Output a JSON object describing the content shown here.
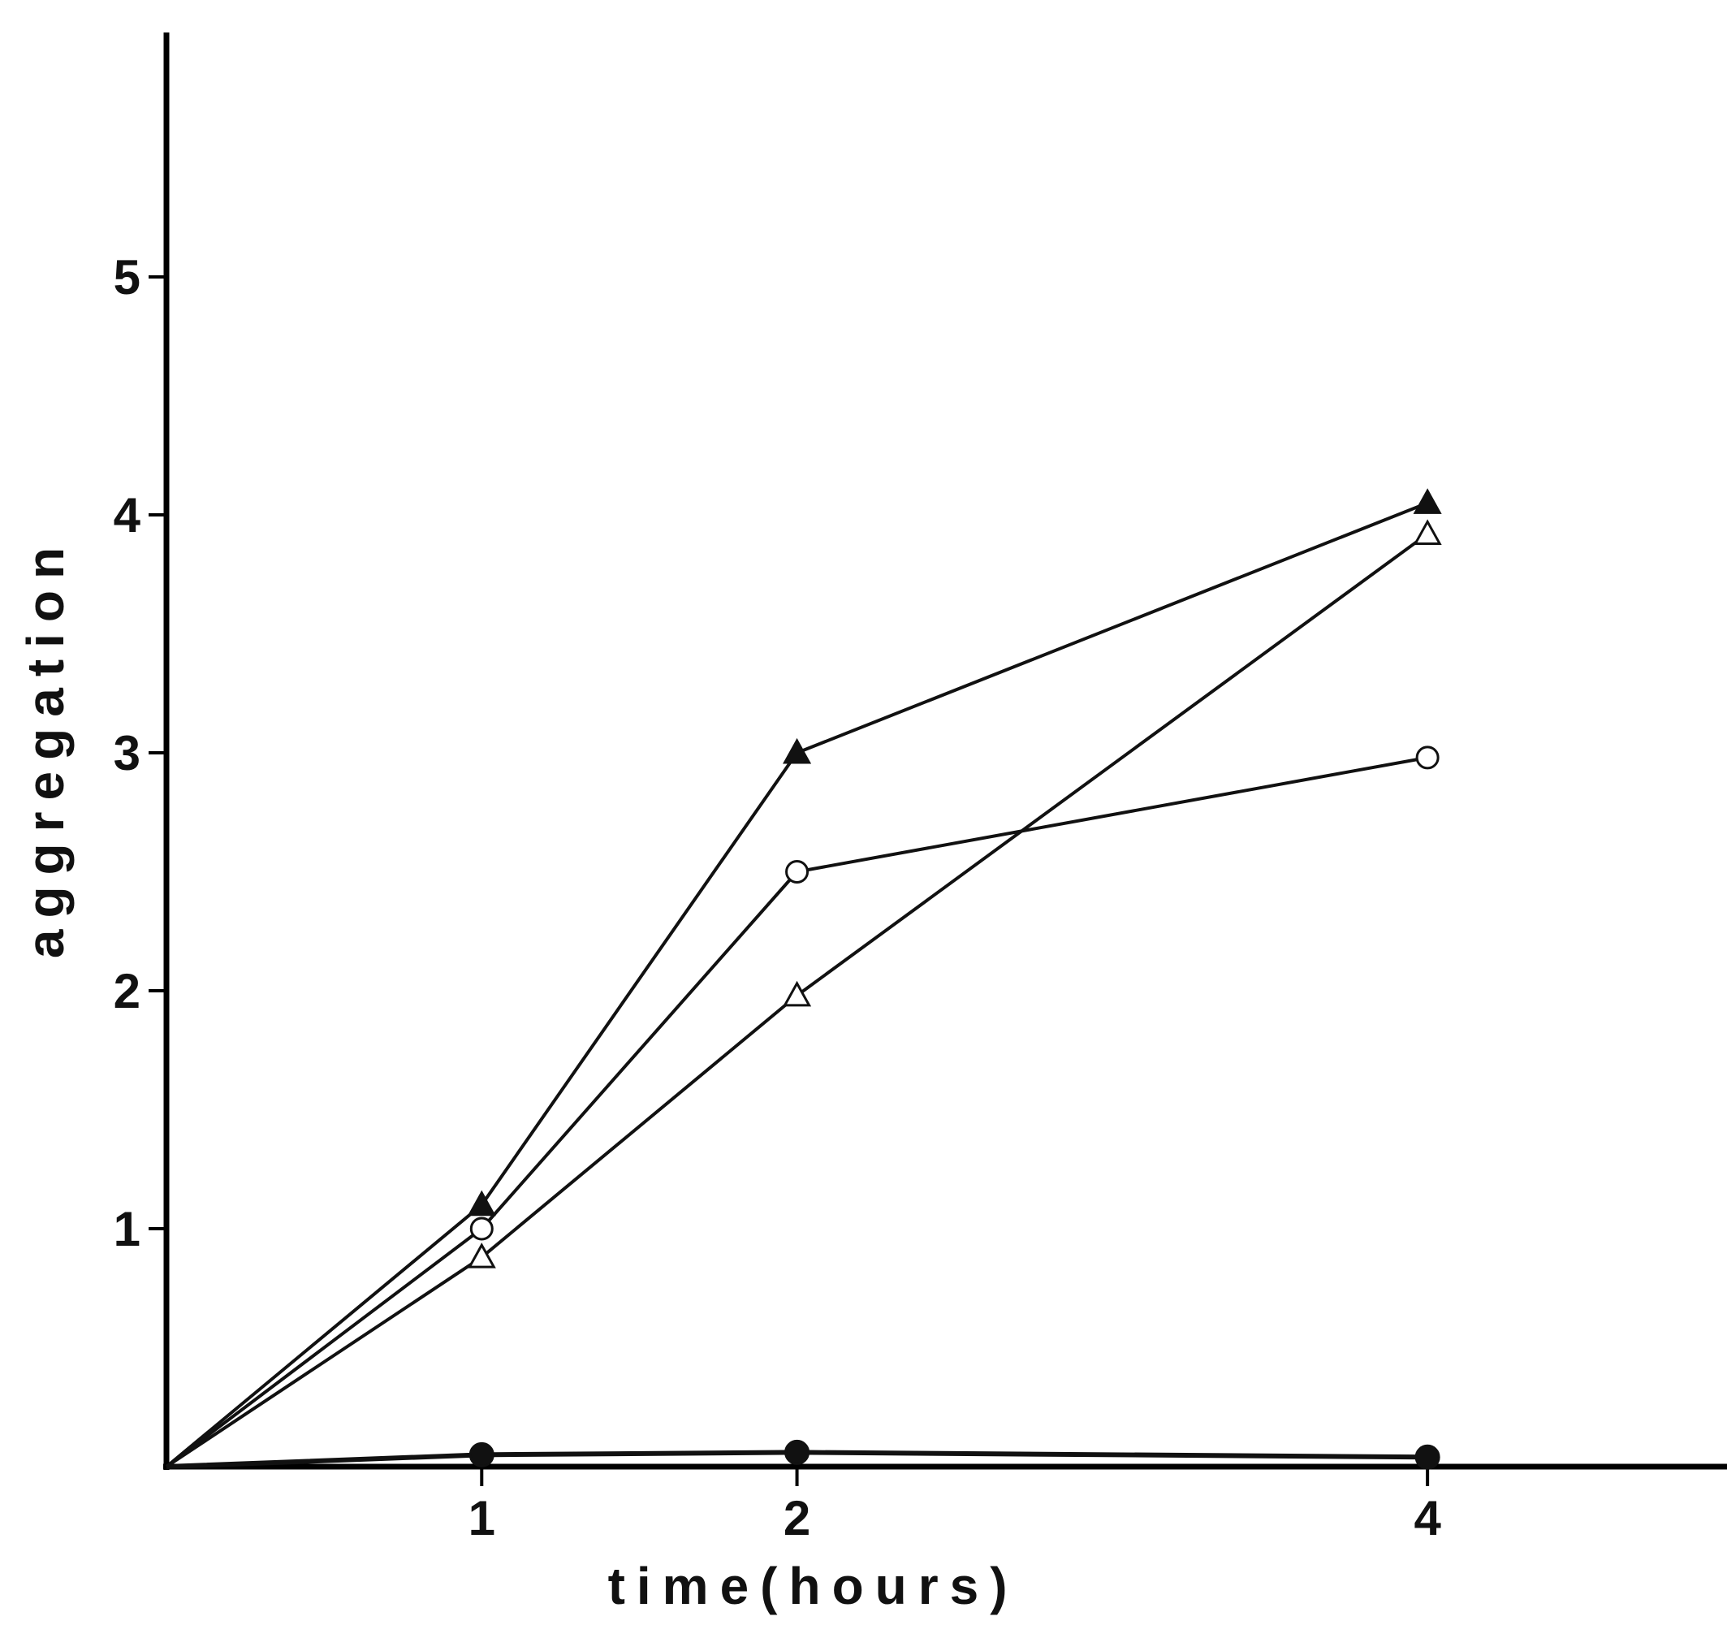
{
  "chart_data": {
    "type": "line",
    "xlabel": "time(hours)",
    "ylabel": "aggregation",
    "xlim": [
      0,
      4.95
    ],
    "ylim": [
      0,
      6
    ],
    "x_ticks": [
      1,
      2,
      4
    ],
    "y_ticks": [
      1,
      2,
      3,
      4,
      5
    ],
    "grid": false,
    "legend": "none",
    "series": [
      {
        "marker": "filled-triangle",
        "x": [
          0,
          1,
          2,
          4
        ],
        "values": [
          0,
          1.1,
          3.0,
          4.05
        ]
      },
      {
        "marker": "open-circle",
        "x": [
          0,
          1,
          2,
          4
        ],
        "values": [
          0,
          1.0,
          2.5,
          2.98
        ]
      },
      {
        "marker": "open-triangle",
        "x": [
          0,
          1,
          2,
          4
        ],
        "values": [
          0,
          0.88,
          1.98,
          3.92
        ]
      },
      {
        "marker": "filled-circle",
        "x": [
          0,
          1,
          2,
          4
        ],
        "values": [
          0,
          0.05,
          0.06,
          0.04
        ]
      }
    ],
    "colors": {
      "line": "#111111",
      "axis": "#000000"
    }
  }
}
